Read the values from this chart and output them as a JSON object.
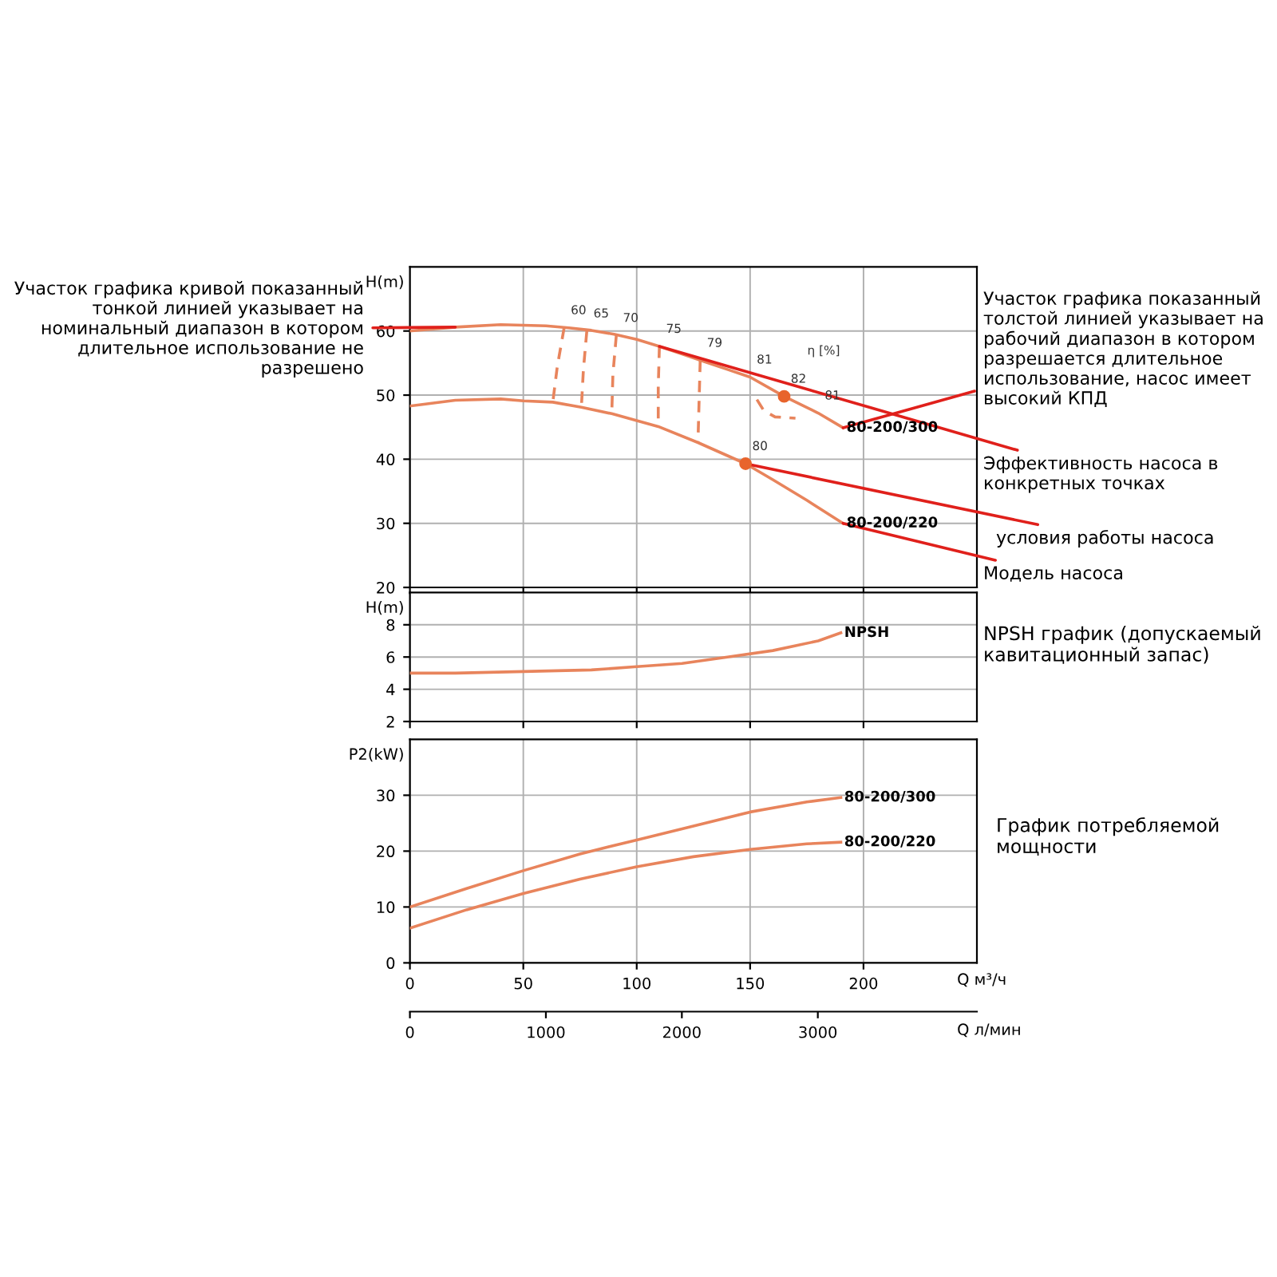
{
  "chart_data": [
    {
      "type": "line",
      "ylabel": "H(m)",
      "xlim": [
        0,
        250
      ],
      "xticks": [
        0,
        50,
        100,
        150,
        200
      ],
      "ylim": [
        20,
        70
      ],
      "yticks": [
        20,
        30,
        40,
        50,
        60
      ],
      "grid": true,
      "tick_labels": "y",
      "series": [
        {
          "name": "80-200/300",
          "color": "#e8845c",
          "x": [
            0,
            20,
            40,
            60,
            70,
            80,
            90,
            100,
            110,
            120,
            130,
            140,
            150,
            165,
            180,
            191
          ],
          "values": [
            60.0,
            60.6,
            61.0,
            60.8,
            60.5,
            60.1,
            59.5,
            58.7,
            57.6,
            56.4,
            55.2,
            54.0,
            52.8,
            49.8,
            47.2,
            44.9
          ]
        },
        {
          "name": "80-200/220",
          "color": "#e8845c",
          "x": [
            0,
            20,
            40,
            50,
            63,
            75.6,
            89,
            109.5,
            127,
            148,
            160,
            175,
            191
          ],
          "values": [
            48.3,
            49.2,
            49.4,
            49.1,
            48.9,
            48.1,
            47.1,
            45.1,
            42.6,
            39.3,
            36.8,
            33.6,
            30.0
          ]
        },
        {
          "type": "line",
          "line_style": "dashed",
          "color": "#e8845c",
          "x": [
            68,
            65,
            63
          ],
          "values": [
            60.5,
            54.5,
            48.9
          ]
        },
        {
          "type": "line",
          "line_style": "dashed",
          "color": "#e8845c",
          "x": [
            78,
            76.5,
            75.6
          ],
          "values": [
            60.0,
            54.0,
            48.1
          ]
        },
        {
          "type": "line",
          "line_style": "dashed",
          "color": "#e8845c",
          "x": [
            91,
            89.5,
            89
          ],
          "values": [
            59.3,
            53.2,
            47.1
          ]
        },
        {
          "type": "line",
          "line_style": "dashed",
          "color": "#e8845c",
          "x": [
            110,
            109.5,
            109.5
          ],
          "values": [
            57.6,
            51.3,
            45.1
          ]
        },
        {
          "type": "line",
          "line_style": "dashed",
          "color": "#e8845c",
          "x": [
            128,
            127.5,
            127
          ],
          "values": [
            55.4,
            49.0,
            42.6
          ]
        },
        {
          "type": "line",
          "line_style": "dashed",
          "color": "#e8845c",
          "x": [
            153,
            156,
            161,
            170
          ],
          "values": [
            49.3,
            47.6,
            46.6,
            46.4
          ]
        },
        {
          "type": "scatter",
          "marker": "circle",
          "color": "#e8642c",
          "x": [
            165,
            148
          ],
          "values": [
            49.8,
            39.3
          ]
        }
      ],
      "annotations": [
        {
          "text": "60",
          "x": 68,
          "y": 60.5
        },
        {
          "text": "65",
          "x": 78,
          "y": 60.0
        },
        {
          "text": "70",
          "x": 91,
          "y": 59.3
        },
        {
          "text": "75",
          "x": 110,
          "y": 57.6
        },
        {
          "text": "79",
          "x": 128,
          "y": 55.4
        },
        {
          "text": "81",
          "x": 150,
          "y": 52.8
        },
        {
          "text": "82",
          "x": 165,
          "y": 49.8
        },
        {
          "text": "81",
          "x": 180,
          "y": 47.2
        },
        {
          "text": "80",
          "x": 148,
          "y": 39.3
        },
        "η [%]",
        {
          "text": "Участок графика кривой показанный тонкой линией указывает на номинальный диапазон в котором длительное использование не разрешено",
          "x": 20,
          "y": 60.6
        },
        {
          "text": "Участок графика показанный толстой линией указывает на рабочий диапазон в котором разрешается длительное использование, насос имеет высокий КПД",
          "x": 191,
          "y": 44.9
        },
        {
          "text": "Эффективность насоса в конкретных точках",
          "x": 110,
          "y": 57.6
        },
        {
          "text": "условия работы насоса",
          "x": 148,
          "y": 39.3
        },
        {
          "text": "Модель насоса",
          "x": 191,
          "y": 30.0
        }
      ]
    },
    {
      "type": "line",
      "ylabel": "H(m)",
      "xlim": [
        0,
        250
      ],
      "xticks": [
        0,
        50,
        100,
        150,
        200
      ],
      "ylim": [
        2,
        10
      ],
      "yticks": [
        2,
        4,
        6,
        8
      ],
      "grid": true,
      "tick_labels": "y",
      "series": [
        {
          "name": "NPSH",
          "color": "#e8845c",
          "x": [
            0,
            20,
            50,
            80,
            100,
            120,
            140,
            160,
            180,
            190
          ],
          "values": [
            5.0,
            5.0,
            5.1,
            5.2,
            5.4,
            5.6,
            6.0,
            6.4,
            7.0,
            7.5
          ]
        }
      ],
      "annotations": [
        "NPSH график (допускаемый кавитационный запас)"
      ]
    },
    {
      "type": "line",
      "ylabel": "P2(kW)",
      "xlabel": "Q м³/ч",
      "x2label": "Q л/мин",
      "xlim": [
        0,
        250
      ],
      "xticks": [
        0,
        50,
        100,
        150,
        200
      ],
      "x2lim": [
        0,
        4170
      ],
      "x2ticks": [
        0,
        1000,
        2000,
        3000
      ],
      "ylim": [
        0,
        40
      ],
      "yticks": [
        0,
        10,
        20,
        30
      ],
      "grid": true,
      "series": [
        {
          "name": "80-200/300",
          "color": "#e8845c",
          "x": [
            0,
            25,
            50,
            75,
            100,
            125,
            150,
            175,
            190
          ],
          "values": [
            10.0,
            13.3,
            16.5,
            19.5,
            22.0,
            24.5,
            27.0,
            28.8,
            29.6
          ]
        },
        {
          "name": "80-200/220",
          "color": "#e8845c",
          "x": [
            0,
            25,
            50,
            75,
            100,
            125,
            150,
            175,
            190
          ],
          "values": [
            6.2,
            9.5,
            12.4,
            15.0,
            17.2,
            19.0,
            20.3,
            21.3,
            21.6
          ]
        }
      ],
      "annotations": [
        "График потребляемой мощности"
      ]
    }
  ]
}
